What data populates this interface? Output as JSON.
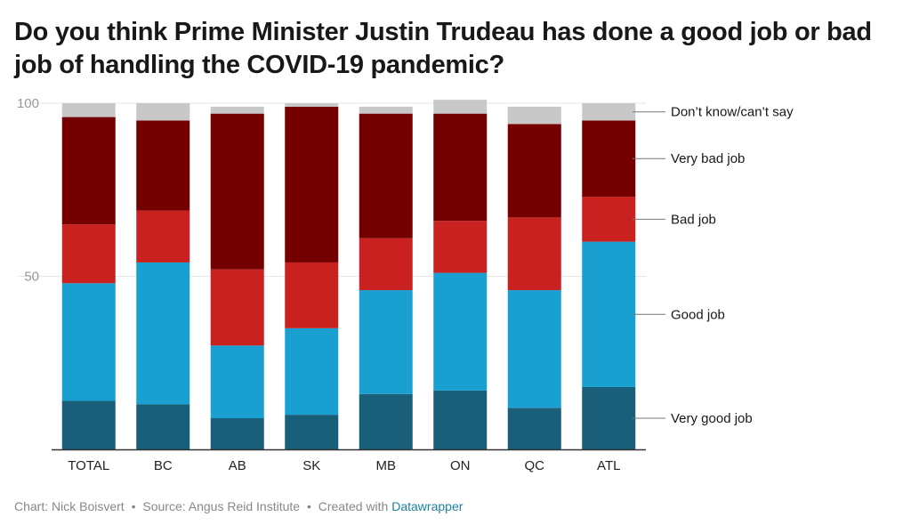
{
  "title": "Do you think Prime Minister Justin Trudeau has done a good job or bad job of handling the COVID-19 pandemic?",
  "footer": {
    "chart_by": "Chart: Nick Boisvert",
    "separator": "•",
    "source": "Source: Angus Reid Institute",
    "created_with": "Created with",
    "brand": "Datawrapper"
  },
  "colors": {
    "very_good": "#1a5f7a",
    "good": "#1aa0d0",
    "bad": "#c92020",
    "very_bad": "#740000",
    "dont_know": "#c8c8c8",
    "grid": "#e6e6e6",
    "axis": "#333333",
    "tick_text": "#999999"
  },
  "chart_data": {
    "type": "bar",
    "stacked": true,
    "categories": [
      "TOTAL",
      "BC",
      "AB",
      "SK",
      "MB",
      "ON",
      "QC",
      "ATL"
    ],
    "series": [
      {
        "name": "Very good job",
        "color_key": "very_good",
        "values": [
          14,
          13,
          9,
          10,
          16,
          17,
          12,
          18
        ]
      },
      {
        "name": "Good job",
        "color_key": "good",
        "values": [
          34,
          41,
          21,
          25,
          30,
          34,
          34,
          42
        ]
      },
      {
        "name": "Bad job",
        "color_key": "bad",
        "values": [
          17,
          15,
          22,
          19,
          15,
          15,
          21,
          13
        ]
      },
      {
        "name": "Very bad job",
        "color_key": "very_bad",
        "values": [
          31,
          26,
          45,
          45,
          36,
          31,
          27,
          22
        ]
      },
      {
        "name": "Don’t know/can’t say",
        "color_key": "dont_know",
        "values": [
          4,
          5,
          2,
          1,
          2,
          4,
          5,
          5
        ]
      }
    ],
    "ylim": [
      0,
      100
    ],
    "yticks": [
      50,
      100
    ],
    "legend": "right, labels aligned to last bar",
    "title": "Do you think Prime Minister Justin Trudeau has done a good job or bad job of handling the COVID-19 pandemic?",
    "xlabel": "",
    "ylabel": ""
  }
}
